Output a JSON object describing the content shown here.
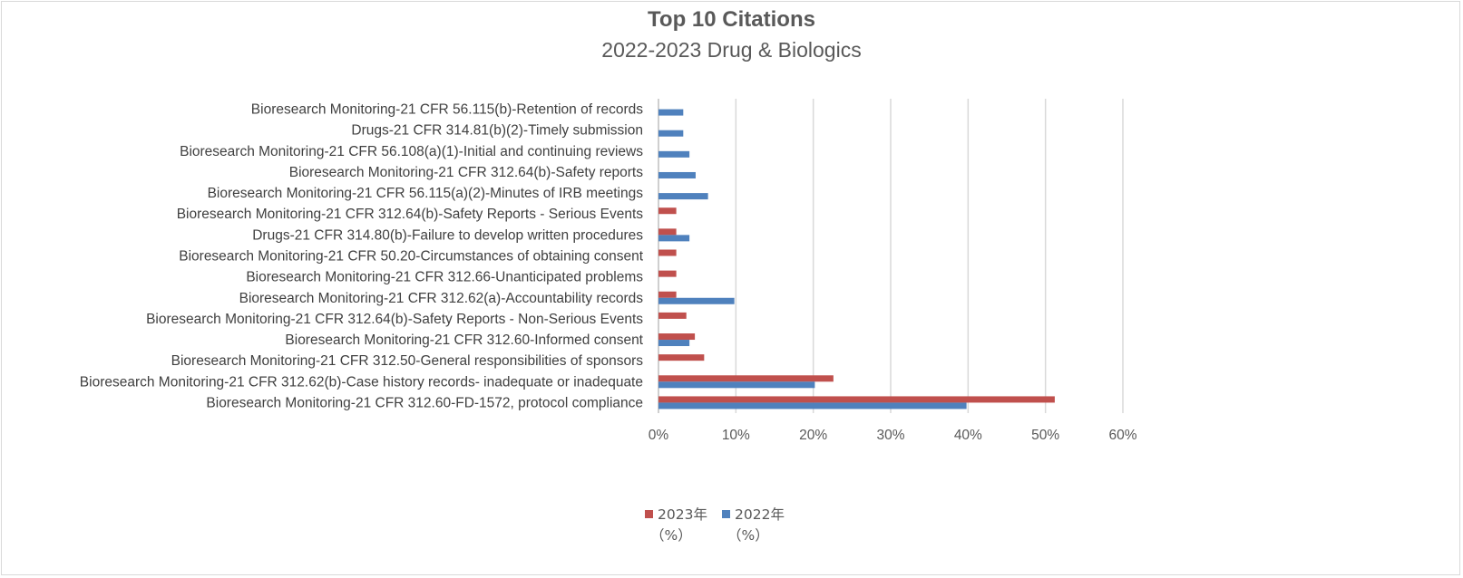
{
  "chart_data": {
    "type": "bar",
    "orientation": "horizontal",
    "title": "Top 10 Citations",
    "subtitle": "2022-2023 Drug & Biologics",
    "categories": [
      "Bioresearch Monitoring-21 CFR 56.115(b)-Retention of records",
      "Drugs-21 CFR 314.81(b)(2)-Timely submission",
      "Bioresearch Monitoring-21 CFR 56.108(a)(1)-Initial and continuing reviews",
      "Bioresearch Monitoring-21 CFR 312.64(b)-Safety reports",
      "Bioresearch Monitoring-21 CFR 56.115(a)(2)-Minutes of IRB meetings",
      "Bioresearch Monitoring-21 CFR 312.64(b)-Safety Reports - Serious Events",
      "Drugs-21 CFR 314.80(b)-Failure to develop written procedures",
      "Bioresearch Monitoring-21 CFR 50.20-Circumstances of obtaining consent",
      "Bioresearch Monitoring-21 CFR 312.66-Unanticipated problems",
      "Bioresearch Monitoring-21 CFR 312.62(a)-Accountability records",
      "Bioresearch Monitoring-21 CFR 312.64(b)-Safety Reports - Non-Serious Events",
      "Bioresearch Monitoring-21 CFR 312.60-Informed consent",
      "Bioresearch Monitoring-21 CFR 312.50-General responsibilities of sponsors",
      "Bioresearch Monitoring-21 CFR 312.62(b)-Case history records- inadequate or inadequate",
      "Bioresearch Monitoring-21 CFR 312.60-FD-1572, protocol compliance"
    ],
    "series": [
      {
        "name": "2023年（%）",
        "legend_line1": "2023年",
        "legend_line2": "（%）",
        "color": "#c0504d",
        "values": [
          0,
          0,
          0,
          0,
          0,
          2.3,
          2.3,
          2.3,
          2.3,
          2.3,
          3.6,
          4.7,
          5.9,
          22.6,
          51.2
        ]
      },
      {
        "name": "2022年（%）",
        "legend_line1": "2022年",
        "legend_line2": "（%）",
        "color": "#4f81bd",
        "values": [
          3.2,
          3.2,
          4.0,
          4.8,
          6.4,
          0,
          4.0,
          0,
          0,
          9.8,
          0,
          4.0,
          0,
          20.2,
          39.8
        ]
      }
    ],
    "xlim": [
      0,
      60
    ],
    "xticks": [
      "0%",
      "10%",
      "20%",
      "30%",
      "40%",
      "50%",
      "60%"
    ],
    "xtick_values": [
      0,
      10,
      20,
      30,
      40,
      50,
      60
    ],
    "grid": true,
    "legend_position": "bottom"
  }
}
